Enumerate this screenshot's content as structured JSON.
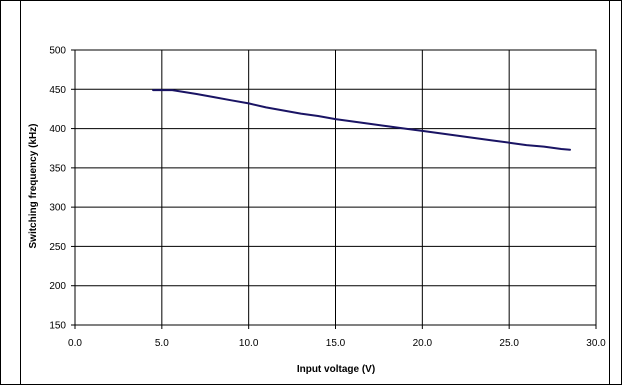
{
  "chart_data": {
    "type": "line",
    "title": "",
    "xlabel": "Input voltage (V)",
    "ylabel": "Switching frequency (kHz)",
    "xlim": [
      0,
      30
    ],
    "ylim": [
      150,
      500
    ],
    "x_ticks": [
      "0.0",
      "5.0",
      "10.0",
      "15.0",
      "20.0",
      "25.0",
      "30.0"
    ],
    "y_ticks": [
      "150",
      "200",
      "250",
      "300",
      "350",
      "400",
      "450",
      "500"
    ],
    "grid": true,
    "legend": "none",
    "series": [
      {
        "color": "#1a1464",
        "x": [
          4.5,
          5.6,
          7,
          8,
          9,
          10,
          11,
          12,
          13,
          14,
          15,
          16,
          17,
          18,
          19,
          20,
          21,
          22,
          23,
          24,
          25,
          26,
          27,
          28,
          28.5
        ],
        "y": [
          449,
          449,
          444,
          440,
          436,
          432,
          427,
          423,
          419,
          416,
          412,
          409,
          406,
          403,
          400,
          397,
          394,
          391,
          388,
          385,
          382,
          379,
          377,
          374,
          373
        ]
      }
    ]
  }
}
